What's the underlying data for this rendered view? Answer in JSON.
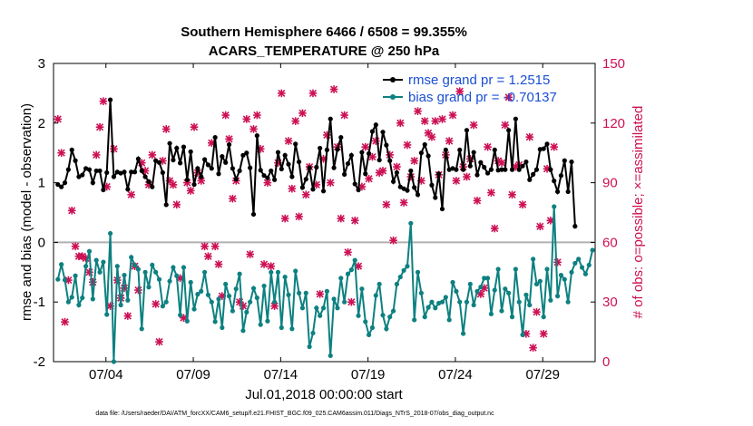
{
  "chart_data": {
    "type": "line",
    "title_line1": "Southern Hemisphere 6466 / 6508 = 99.355%",
    "title_line2": "ACARS_TEMPERATURE @ 250 hPa",
    "xlabel": "Jul.01,2018 00:00:00 start",
    "ylabel_left": "rmse and bias (model - observation)",
    "ylabel_right": "# of obs: o=possible; ×=assimilated",
    "ylim_left": [
      -2,
      3
    ],
    "ylim_right": [
      0,
      150
    ],
    "xlim": [
      1.0,
      32.0
    ],
    "yticks_left": [
      "-2",
      "-1",
      "0",
      "1",
      "2",
      "3"
    ],
    "yticks_right": [
      "0",
      "30",
      "60",
      "90",
      "120",
      "150"
    ],
    "x_ticks": [
      {
        "value": 4.0,
        "label": "07/04"
      },
      {
        "value": 9.0,
        "label": "07/09"
      },
      {
        "value": 14.0,
        "label": "07/14"
      },
      {
        "value": 19.0,
        "label": "07/19"
      },
      {
        "value": 24.0,
        "label": "07/24"
      },
      {
        "value": 29.0,
        "label": "07/29"
      }
    ],
    "zero_line": 0,
    "footer": "data file: /Users/raeder/DAI/ATM_forcXX/CAM6_setup/f.e21.FHIST_BGC.f09_025.CAM6assim.011/Diags_NTrS_2018-07/obs_diag_output.nc",
    "colors": {
      "rmse": "#000000",
      "bias": "#0e8080",
      "obs": "#cc1155",
      "zero": "#b0b0b0"
    },
    "series": [
      {
        "name": "rmse grand pr = 1.2515",
        "axis": "left",
        "values": [
          0.97,
          0.93,
          1.0,
          1.22,
          1.55,
          1.37,
          1.1,
          1.13,
          1.24,
          1.22,
          1.0,
          1.2,
          1.2,
          0.88,
          1.17,
          2.39,
          1.1,
          1.18,
          1.16,
          1.18,
          0.89,
          1.18,
          1.18,
          1.4,
          1.2,
          1.1,
          1.02,
          0.93,
          1.37,
          1.34,
          1.17,
          0.63,
          1.66,
          1.38,
          1.58,
          1.33,
          1.6,
          1.05,
          1.52,
          0.97,
          1.24,
          1.1,
          1.39,
          1.3,
          1.24,
          1.76,
          1.15,
          1.44,
          1.34,
          1.64,
          1.24,
          1.06,
          1.2,
          1.46,
          1.5,
          1.25,
          0.47,
          1.79,
          1.21,
          1.12,
          1.08,
          1.2,
          1.05,
          1.51,
          1.23,
          1.46,
          1.31,
          1.1,
          1.65,
          1.35,
          0.92,
          1.06,
          1.25,
          0.89,
          1.26,
          1.58,
          0.86,
          1.55,
          2.07,
          1.25,
          1.56,
          1.76,
          1.14,
          1.32,
          1.46,
          0.98,
          0.88,
          1.51,
          1.15,
          1.49,
          1.86,
          1.97,
          1.38,
          1.85,
          1.63,
          1.37,
          1.02,
          1.17,
          0.93,
          0.9,
          0.87,
          1.2,
          0.92,
          0.8,
          1.5,
          1.64,
          1.45,
          0.96,
          0.75,
          1.15,
          0.56,
          1.55,
          1.22,
          1.24,
          1.22,
          1.55,
          1.22,
          1.88,
          1.28,
          1.51,
          1.13,
          1.34,
          1.26,
          1.16,
          1.22,
          1.55,
          1.21,
          1.22,
          1.22,
          1.88,
          1.22,
          2.07,
          1.22,
          1.28,
          1.35,
          1.05,
          1.14,
          1.22,
          1.56,
          1.57,
          1.65,
          1.22,
          1.03,
          0.85,
          1.12,
          1.37,
          0.85,
          1.35,
          0.27
        ]
      },
      {
        "name": "bias grand pr = -0.70137",
        "axis": "left",
        "values": [
          -0.62,
          -0.37,
          -0.63,
          -1.0,
          -0.92,
          -0.56,
          -1.05,
          -0.93,
          -0.4,
          -0.15,
          -0.95,
          -0.3,
          -0.5,
          -0.33,
          -1.21,
          0.15,
          -2.0,
          -0.4,
          -1.05,
          -0.55,
          -0.97,
          -0.25,
          -0.38,
          -0.45,
          -1.45,
          -0.5,
          -0.75,
          -0.38,
          -0.5,
          -0.62,
          -1.07,
          -1.0,
          -0.65,
          -0.42,
          -0.56,
          -1.22,
          -0.42,
          -1.32,
          -0.67,
          -1.12,
          -0.87,
          -0.82,
          -0.5,
          -0.88,
          -1.0,
          -1.33,
          -0.95,
          -1.43,
          -0.7,
          -0.9,
          -1.15,
          -0.78,
          -0.53,
          -1.48,
          -1.17,
          -1.0,
          -0.77,
          -0.93,
          -1.38,
          -0.73,
          -1.32,
          -0.5,
          -1.0,
          -0.5,
          -1.43,
          -0.58,
          -0.88,
          -1.45,
          -0.48,
          -0.85,
          -1.1,
          -0.85,
          -1.75,
          -1.52,
          -1.1,
          -1.23,
          -1.1,
          -0.82,
          -1.9,
          -0.95,
          -1.1,
          -0.6,
          -1.0,
          -0.53,
          -0.46,
          -0.3,
          -1.23,
          -0.78,
          -1.33,
          -1.55,
          -1.43,
          -0.89,
          -0.7,
          -1.22,
          -1.45,
          -1.25,
          -1.15,
          -0.7,
          -0.58,
          -0.47,
          -0.4,
          0.32,
          -1.3,
          -0.5,
          -0.85,
          -1.25,
          -1.09,
          -1.0,
          -1.1,
          -1.02,
          -1.0,
          -0.92,
          -1.3,
          -0.67,
          -0.82,
          -1.0,
          -1.53,
          -1.0,
          -0.7,
          -1.05,
          -0.82,
          -0.75,
          -0.6,
          -0.6,
          -1.2,
          -0.8,
          -0.45,
          -1.15,
          -0.78,
          -0.85,
          -1.25,
          -0.45,
          -1.0,
          -1.55,
          -0.88,
          -1.05,
          -0.28,
          -0.7,
          -0.65,
          -1.25,
          -0.45,
          -0.97,
          0.6,
          -0.9,
          -0.55,
          -0.62,
          -1.0,
          -0.5,
          -0.35,
          -0.28,
          -0.42,
          -0.53,
          -0.38,
          -0.13
        ]
      },
      {
        "name": "# of obs assimilated",
        "axis": "right",
        "values": [
          122,
          105,
          20,
          41,
          76,
          58,
          53,
          53,
          52,
          45,
          40,
          104,
          118,
          131,
          88,
          28,
          107,
          41,
          32,
          37,
          23,
          84,
          48,
          36,
          100,
          96,
          89,
          104,
          29,
          10,
          101,
          117,
          91,
          89,
          79,
          42,
          22,
          90,
          86,
          118,
          95,
          91,
          58,
          53,
          110,
          58,
          49,
          33,
          124,
          112,
          82,
          91,
          30,
          28,
          122,
          54,
          117,
          124,
          107,
          49,
          90,
          48,
          28,
          100,
          135,
          72,
          111,
          87,
          121,
          73,
          125,
          84,
          98,
          135,
          89,
          34,
          102,
          114,
          90,
          137,
          108,
          72,
          124,
          55,
          30,
          71,
          48,
          88,
          108,
          92,
          103,
          111,
          95,
          96,
          79,
          104,
          61,
          98,
          120,
          80,
          109,
          93,
          101,
          126,
          91,
          121,
          115,
          113,
          121,
          94,
          122,
          104,
          111,
          124,
          91,
          136,
          98,
          93,
          102,
          119,
          81,
          34,
          37,
          108,
          85,
          67,
          101,
          100,
          119,
          133,
          84,
          98,
          99,
          79,
          14,
          113,
          7,
          25,
          68,
          14,
          97,
          71,
          108,
          50
        ]
      }
    ]
  }
}
